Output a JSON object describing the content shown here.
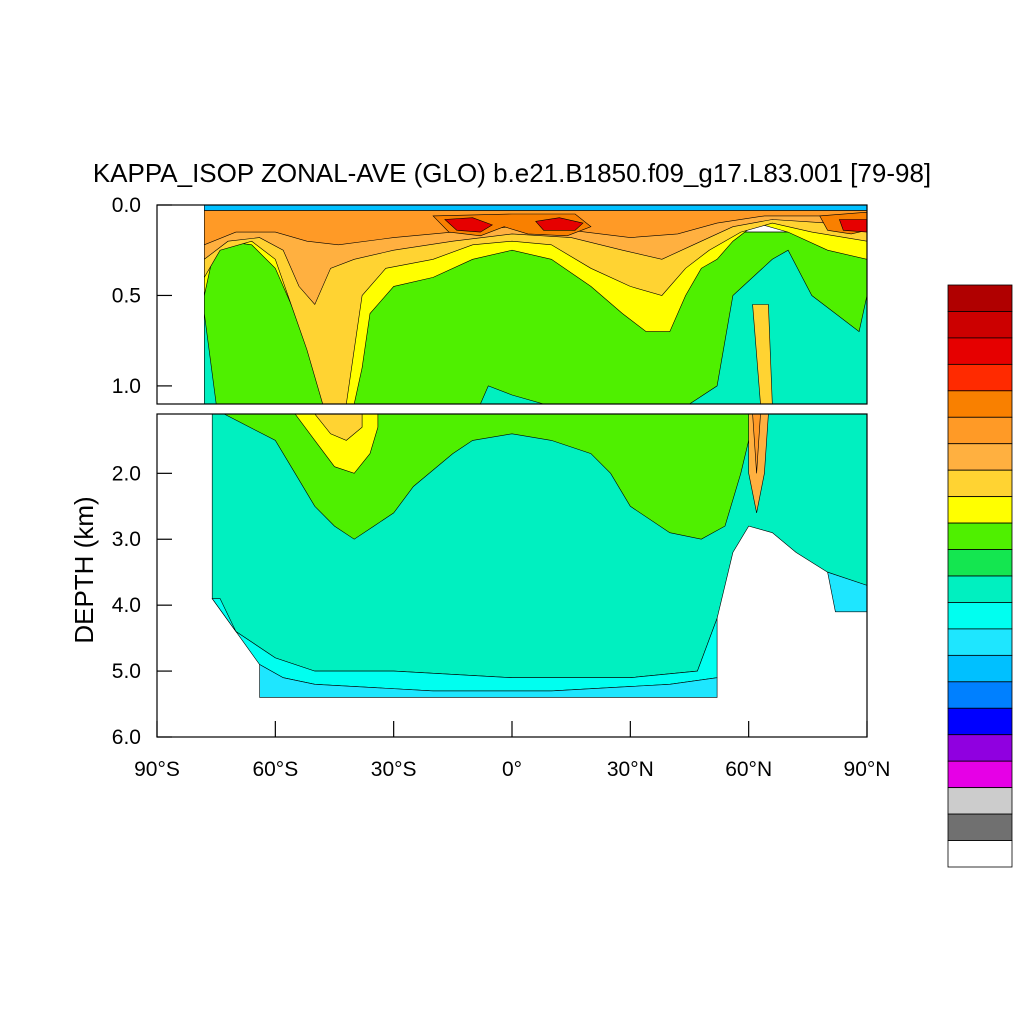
{
  "chart_data": {
    "type": "heatmap",
    "title": "KAPPA_ISOP ZONAL-AVE (GLO) b.e21.B1850.f09_g17.L83.001 [79-98]",
    "ylabel": "DEPTH (km)",
    "xlabel": "",
    "xlim": [
      -90,
      90
    ],
    "ylim_upper": [
      0.0,
      1.1
    ],
    "ylim_lower": [
      1.1,
      6.0
    ],
    "x_ticks": [
      {
        "value": -90,
        "label": "90°S"
      },
      {
        "value": -60,
        "label": "60°S"
      },
      {
        "value": -30,
        "label": "30°S"
      },
      {
        "value": 0,
        "label": "0°"
      },
      {
        "value": 30,
        "label": "30°N"
      },
      {
        "value": 60,
        "label": "60°N"
      },
      {
        "value": 90,
        "label": "90°N"
      }
    ],
    "y_ticks_upper": [
      {
        "value": 0.0,
        "label": "0.0"
      },
      {
        "value": 0.5,
        "label": "0.5"
      },
      {
        "value": 1.0,
        "label": "1.0"
      }
    ],
    "y_ticks_lower": [
      {
        "value": 2.0,
        "label": "2.0"
      },
      {
        "value": 3.0,
        "label": "3.0"
      },
      {
        "value": 4.0,
        "label": "4.0"
      },
      {
        "value": 5.0,
        "label": "5.0"
      },
      {
        "value": 6.0,
        "label": "6.0"
      }
    ],
    "colorbar": [
      "#b00000",
      "#cc0000",
      "#e60000",
      "#ff2a00",
      "#f98000",
      "#ff9a26",
      "#ffb040",
      "#ffd332",
      "#ffff00",
      "#4ff000",
      "#14e650",
      "#00f0c0",
      "#00fff0",
      "#1ee6ff",
      "#00c0ff",
      "#0080ff",
      "#0000ff",
      "#9000e0",
      "#e600e6",
      "#cccccc",
      "#707070",
      "#ffffff"
    ],
    "regions": [
      {
        "band": "upper",
        "color": "#00f0c0",
        "points": [
          [
            -78,
            0.15
          ],
          [
            -78,
            1.1
          ],
          [
            90,
            1.1
          ],
          [
            90,
            0.15
          ]
        ]
      },
      {
        "band": "upper",
        "color": "#4ff000",
        "points": [
          [
            -78,
            0.15
          ],
          [
            -78,
            0.6
          ],
          [
            -75,
            1.1
          ],
          [
            -8,
            1.1
          ],
          [
            -6,
            1.0
          ],
          [
            0,
            1.05
          ],
          [
            8,
            1.1
          ],
          [
            30,
            1.1
          ],
          [
            45,
            1.1
          ],
          [
            52,
            1.0
          ],
          [
            56,
            0.5
          ],
          [
            66,
            0.3
          ],
          [
            70,
            0.25
          ],
          [
            76,
            0.5
          ],
          [
            82,
            0.6
          ],
          [
            88,
            0.7
          ],
          [
            90,
            0.5
          ],
          [
            90,
            0.15
          ]
        ]
      },
      {
        "band": "upper",
        "color": "#ffff00",
        "points": [
          [
            -78,
            0.1
          ],
          [
            -78,
            0.5
          ],
          [
            -76,
            0.3
          ],
          [
            -73,
            0.2
          ],
          [
            -66,
            0.22
          ],
          [
            -60,
            0.35
          ],
          [
            -55,
            0.6
          ],
          [
            -50,
            0.9
          ],
          [
            -48,
            1.1
          ],
          [
            -40,
            1.1
          ],
          [
            -38,
            0.9
          ],
          [
            -36,
            0.6
          ],
          [
            -30,
            0.45
          ],
          [
            -20,
            0.4
          ],
          [
            -10,
            0.3
          ],
          [
            0,
            0.25
          ],
          [
            10,
            0.3
          ],
          [
            20,
            0.45
          ],
          [
            28,
            0.6
          ],
          [
            34,
            0.7
          ],
          [
            40,
            0.7
          ],
          [
            44,
            0.5
          ],
          [
            48,
            0.35
          ],
          [
            52,
            0.3
          ],
          [
            56,
            0.2
          ],
          [
            62,
            0.1
          ],
          [
            70,
            0.15
          ],
          [
            80,
            0.25
          ],
          [
            90,
            0.3
          ],
          [
            90,
            0.05
          ],
          [
            -78,
            0.05
          ]
        ]
      },
      {
        "band": "upper",
        "color": "#ffd332",
        "points": [
          [
            -78,
            0.08
          ],
          [
            -78,
            0.4
          ],
          [
            -74,
            0.25
          ],
          [
            -66,
            0.2
          ],
          [
            -60,
            0.3
          ],
          [
            -56,
            0.55
          ],
          [
            -52,
            0.8
          ],
          [
            -48,
            1.1
          ],
          [
            -42,
            1.1
          ],
          [
            -40,
            0.8
          ],
          [
            -38,
            0.5
          ],
          [
            -32,
            0.35
          ],
          [
            -20,
            0.3
          ],
          [
            -10,
            0.22
          ],
          [
            0,
            0.2
          ],
          [
            10,
            0.22
          ],
          [
            20,
            0.35
          ],
          [
            30,
            0.45
          ],
          [
            38,
            0.5
          ],
          [
            44,
            0.35
          ],
          [
            50,
            0.25
          ],
          [
            58,
            0.15
          ],
          [
            66,
            0.1
          ],
          [
            76,
            0.15
          ],
          [
            90,
            0.2
          ],
          [
            90,
            0.05
          ],
          [
            -78,
            0.05
          ]
        ]
      },
      {
        "band": "upper",
        "color": "#ffb040",
        "points": [
          [
            -78,
            0.06
          ],
          [
            -78,
            0.3
          ],
          [
            -72,
            0.2
          ],
          [
            -64,
            0.18
          ],
          [
            -58,
            0.25
          ],
          [
            -54,
            0.45
          ],
          [
            -50,
            0.55
          ],
          [
            -46,
            0.35
          ],
          [
            -40,
            0.3
          ],
          [
            -30,
            0.25
          ],
          [
            -15,
            0.2
          ],
          [
            0,
            0.16
          ],
          [
            15,
            0.18
          ],
          [
            28,
            0.25
          ],
          [
            38,
            0.3
          ],
          [
            46,
            0.22
          ],
          [
            56,
            0.12
          ],
          [
            66,
            0.08
          ],
          [
            80,
            0.1
          ],
          [
            90,
            0.12
          ],
          [
            90,
            0.04
          ],
          [
            -78,
            0.04
          ]
        ]
      },
      {
        "band": "upper",
        "color": "#ff9a26",
        "points": [
          [
            -78,
            0.04
          ],
          [
            -78,
            0.22
          ],
          [
            -70,
            0.15
          ],
          [
            -60,
            0.15
          ],
          [
            -52,
            0.2
          ],
          [
            -44,
            0.22
          ],
          [
            -30,
            0.18
          ],
          [
            -15,
            0.15
          ],
          [
            0,
            0.12
          ],
          [
            15,
            0.14
          ],
          [
            30,
            0.18
          ],
          [
            42,
            0.16
          ],
          [
            52,
            0.1
          ],
          [
            64,
            0.06
          ],
          [
            80,
            0.06
          ],
          [
            90,
            0.08
          ],
          [
            90,
            0.03
          ],
          [
            -78,
            0.03
          ]
        ]
      },
      {
        "band": "upper",
        "color": "#f98000",
        "points": [
          [
            -20,
            0.06
          ],
          [
            -16,
            0.15
          ],
          [
            -8,
            0.17
          ],
          [
            -2,
            0.12
          ],
          [
            4,
            0.16
          ],
          [
            14,
            0.17
          ],
          [
            20,
            0.12
          ],
          [
            16,
            0.05
          ],
          [
            0,
            0.05
          ]
        ]
      },
      {
        "band": "upper",
        "color": "#f98000",
        "points": [
          [
            78,
            0.06
          ],
          [
            80,
            0.14
          ],
          [
            86,
            0.16
          ],
          [
            90,
            0.14
          ],
          [
            90,
            0.04
          ]
        ]
      },
      {
        "band": "upper",
        "color": "#e60000",
        "points": [
          [
            -17,
            0.08
          ],
          [
            -14,
            0.14
          ],
          [
            -8,
            0.15
          ],
          [
            -5,
            0.11
          ],
          [
            -10,
            0.07
          ]
        ]
      },
      {
        "band": "upper",
        "color": "#e60000",
        "points": [
          [
            6,
            0.09
          ],
          [
            8,
            0.14
          ],
          [
            16,
            0.14
          ],
          [
            18,
            0.1
          ],
          [
            12,
            0.07
          ]
        ]
      },
      {
        "band": "upper",
        "color": "#e60000",
        "points": [
          [
            83,
            0.08
          ],
          [
            84,
            0.14
          ],
          [
            90,
            0.15
          ],
          [
            90,
            0.08
          ]
        ]
      },
      {
        "band": "upper",
        "color": "#00c0ff",
        "points": [
          [
            -78,
            0.0
          ],
          [
            -78,
            0.03
          ],
          [
            90,
            0.03
          ],
          [
            90,
            0.0
          ]
        ]
      },
      {
        "band": "upper",
        "color": "#ffd332",
        "points": [
          [
            61,
            0.55
          ],
          [
            63,
            1.1
          ],
          [
            66,
            1.1
          ],
          [
            65,
            0.55
          ]
        ]
      },
      {
        "band": "lower",
        "color": "#00f0c0",
        "points": [
          [
            -76,
            1.1
          ],
          [
            -76,
            3.9
          ],
          [
            -70,
            4.4
          ],
          [
            -60,
            4.8
          ],
          [
            -50,
            5.0
          ],
          [
            -30,
            5.0
          ],
          [
            0,
            5.1
          ],
          [
            30,
            5.1
          ],
          [
            47,
            5.0
          ],
          [
            52,
            4.2
          ],
          [
            56,
            3.2
          ],
          [
            60,
            2.8
          ],
          [
            66,
            2.9
          ],
          [
            72,
            3.2
          ],
          [
            80,
            3.5
          ],
          [
            90,
            3.7
          ],
          [
            90,
            1.1
          ]
        ]
      },
      {
        "band": "lower",
        "color": "#00fff0",
        "points": [
          [
            -74,
            3.9
          ],
          [
            -70,
            4.4
          ],
          [
            -64,
            4.9
          ],
          [
            -58,
            5.1
          ],
          [
            -50,
            5.2
          ],
          [
            -20,
            5.3
          ],
          [
            10,
            5.3
          ],
          [
            40,
            5.2
          ],
          [
            52,
            5.1
          ],
          [
            52,
            4.2
          ],
          [
            47,
            5.0
          ],
          [
            30,
            5.1
          ],
          [
            0,
            5.1
          ],
          [
            -30,
            5.0
          ],
          [
            -50,
            5.0
          ],
          [
            -60,
            4.8
          ],
          [
            -70,
            4.4
          ],
          [
            -76,
            3.9
          ]
        ]
      },
      {
        "band": "lower",
        "color": "#1ee6ff",
        "points": [
          [
            -64,
            4.9
          ],
          [
            -64,
            5.4
          ],
          [
            -50,
            5.4
          ],
          [
            -20,
            5.4
          ],
          [
            10,
            5.4
          ],
          [
            52,
            5.4
          ],
          [
            52,
            5.1
          ],
          [
            40,
            5.2
          ],
          [
            10,
            5.3
          ],
          [
            -20,
            5.3
          ],
          [
            -50,
            5.2
          ],
          [
            -58,
            5.1
          ]
        ]
      },
      {
        "band": "lower",
        "color": "#1ee6ff",
        "points": [
          [
            80,
            3.5
          ],
          [
            82,
            4.1
          ],
          [
            90,
            4.1
          ],
          [
            90,
            3.7
          ]
        ]
      },
      {
        "band": "lower",
        "color": "#4ff000",
        "points": [
          [
            -73,
            1.1
          ],
          [
            -60,
            1.5
          ],
          [
            -55,
            2.0
          ],
          [
            -50,
            2.5
          ],
          [
            -45,
            2.8
          ],
          [
            -40,
            3.0
          ],
          [
            -35,
            2.8
          ],
          [
            -30,
            2.6
          ],
          [
            -25,
            2.2
          ],
          [
            -15,
            1.7
          ],
          [
            -10,
            1.5
          ],
          [
            0,
            1.4
          ],
          [
            10,
            1.5
          ],
          [
            20,
            1.7
          ],
          [
            25,
            2.0
          ],
          [
            30,
            2.5
          ],
          [
            40,
            2.9
          ],
          [
            48,
            3.0
          ],
          [
            54,
            2.8
          ],
          [
            58,
            2.0
          ],
          [
            60,
            1.5
          ],
          [
            62,
            1.1
          ]
        ]
      },
      {
        "band": "lower",
        "color": "#ffff00",
        "points": [
          [
            -55,
            1.1
          ],
          [
            -50,
            1.5
          ],
          [
            -45,
            1.9
          ],
          [
            -40,
            2.0
          ],
          [
            -36,
            1.7
          ],
          [
            -34,
            1.3
          ],
          [
            -34,
            1.1
          ]
        ]
      },
      {
        "band": "lower",
        "color": "#ffd332",
        "points": [
          [
            -50,
            1.1
          ],
          [
            -46,
            1.4
          ],
          [
            -42,
            1.5
          ],
          [
            -38,
            1.3
          ],
          [
            -38,
            1.1
          ]
        ]
      },
      {
        "band": "lower",
        "color": "#ffb040",
        "points": [
          [
            60,
            1.1
          ],
          [
            60,
            2.0
          ],
          [
            62,
            2.6
          ],
          [
            64,
            2.0
          ],
          [
            65,
            1.1
          ]
        ]
      },
      {
        "band": "lower",
        "color": "#ff9a26",
        "points": [
          [
            61,
            1.1
          ],
          [
            62,
            2.0
          ],
          [
            63,
            1.1
          ]
        ]
      }
    ]
  }
}
